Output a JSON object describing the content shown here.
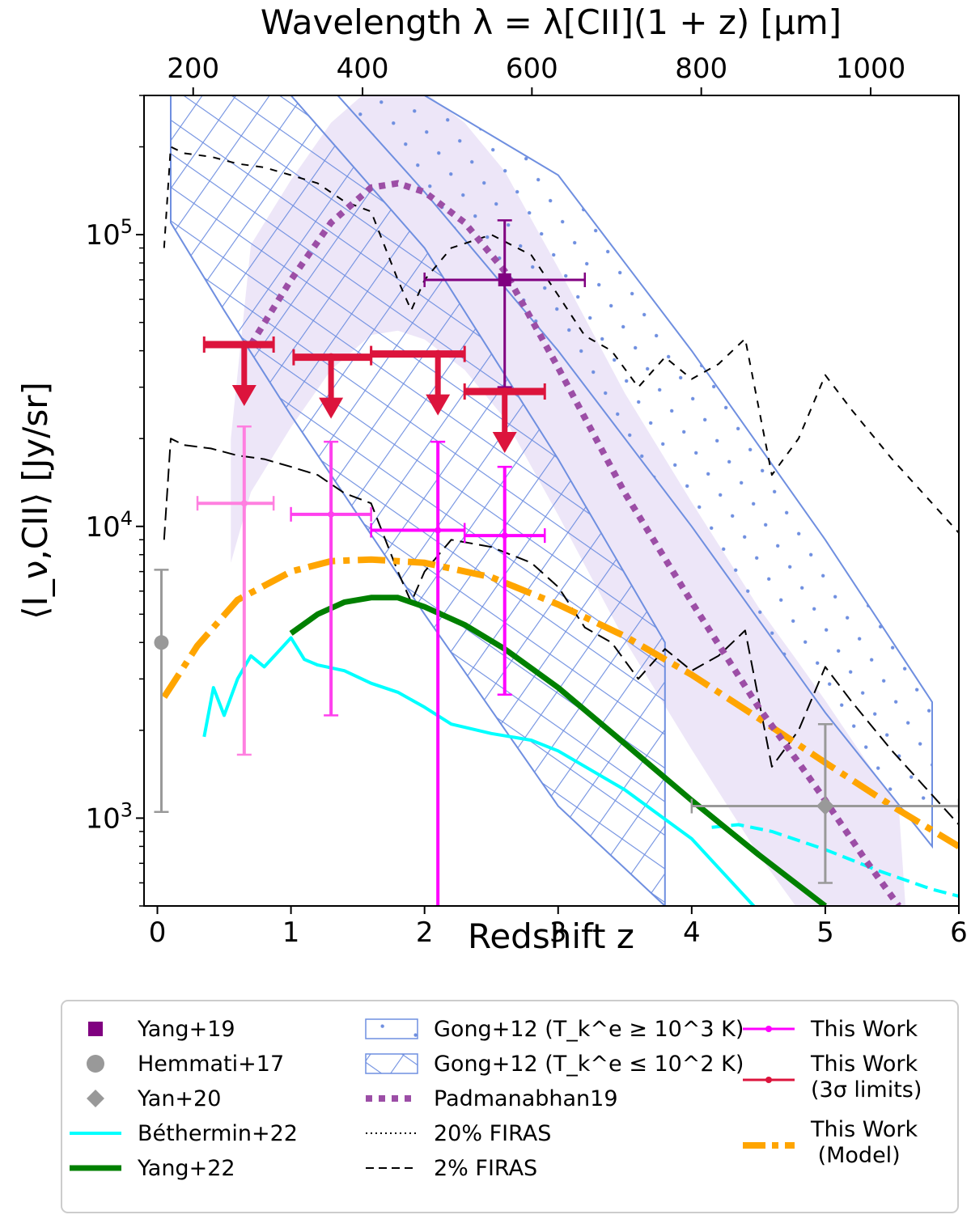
{
  "chart_data": {
    "type": "line",
    "title": "",
    "xlabel": "Redshift z",
    "ylabel": "⟨I_ν,CII⟩ [Jy/sr]",
    "top_xlabel": "Wavelength λ = λ[CII](1 + z) [μm]",
    "xlim": [
      -0.1,
      6.0
    ],
    "ylim": [
      500,
      300000
    ],
    "yscale": "log",
    "x_ticks": [
      "0",
      "1",
      "2",
      "3",
      "4",
      "5",
      "6"
    ],
    "y_ticks": [
      "10^3",
      "10^4",
      "10^5"
    ],
    "top_ticks": [
      "200",
      "400",
      "600",
      "800",
      "1000"
    ],
    "legend_position": "below",
    "series": [
      {
        "name": "Yang+19",
        "kind": "point",
        "color": "#800080",
        "points": [
          {
            "x": 2.6,
            "y": 70000,
            "xerr": [
              2.0,
              3.2
            ],
            "yerr": [
              30000,
              112000
            ]
          }
        ]
      },
      {
        "name": "Hemmati+17",
        "kind": "point",
        "color": "#808080",
        "points": [
          {
            "x": 0.03,
            "y": 4000,
            "yerr": [
              1050,
              7100
            ]
          }
        ]
      },
      {
        "name": "Yan+20",
        "kind": "point",
        "color": "#808080",
        "points": [
          {
            "x": 5.0,
            "y": 1100,
            "xerr": [
              4.0,
              6.0
            ],
            "yerr": [
              600,
              2100
            ]
          }
        ]
      },
      {
        "name": "Béthermin+22",
        "kind": "line",
        "color": "#00ffff",
        "x": [
          0.35,
          0.42,
          0.5,
          0.6,
          0.7,
          0.8,
          0.9,
          1.0,
          1.1,
          1.2,
          1.4,
          1.6,
          1.8,
          2.0,
          2.2,
          2.5,
          2.8,
          3.0,
          3.5,
          4.0,
          4.5
        ],
        "y": [
          1900,
          2800,
          2250,
          3000,
          3600,
          3300,
          3700,
          4150,
          3500,
          3350,
          3200,
          2900,
          2700,
          2400,
          2100,
          1950,
          1850,
          1700,
          1250,
          850,
          480
        ]
      },
      {
        "name": "Béthermin+22 (extension)",
        "kind": "line",
        "color": "#00ffff",
        "style": "dashed",
        "x": [
          4.15,
          4.35,
          4.6,
          5.0,
          5.4,
          5.8,
          6.0
        ],
        "y": [
          930,
          950,
          900,
          780,
          660,
          570,
          540
        ]
      },
      {
        "name": "Yang+22",
        "kind": "line",
        "color": "#008000",
        "x": [
          1.0,
          1.2,
          1.4,
          1.6,
          1.8,
          2.0,
          2.3,
          2.6,
          3.0,
          3.5,
          4.0,
          4.5,
          5.0
        ],
        "y": [
          4300,
          5000,
          5500,
          5700,
          5700,
          5300,
          4600,
          3800,
          2800,
          1800,
          1150,
          750,
          500
        ]
      },
      {
        "name": "Padmanabhan19",
        "kind": "line",
        "color": "#9c4ea6",
        "x": [
          0.7,
          1.0,
          1.3,
          1.6,
          1.8,
          2.0,
          2.3,
          2.6,
          3.0,
          3.5,
          4.0,
          4.5,
          4.8,
          5.0,
          5.3,
          5.55
        ],
        "y": [
          42000,
          70000,
          110000,
          145000,
          150000,
          140000,
          110000,
          75000,
          35000,
          13000,
          5500,
          2400,
          1550,
          1150,
          720,
          500
        ]
      },
      {
        "name": "20% FIRAS",
        "kind": "line",
        "color": "#000000",
        "style": "dotted",
        "x": [
          0.05,
          0.1,
          0.2,
          0.4,
          0.6,
          0.8,
          1.0,
          1.2,
          1.4,
          1.6,
          1.8,
          1.9,
          2.0,
          2.2,
          2.5,
          2.8,
          3.0,
          3.2,
          3.4,
          3.6,
          3.8,
          4.0,
          4.2,
          4.4,
          4.6,
          4.8,
          5.0,
          5.2,
          5.5,
          5.8,
          6.0
        ],
        "y": [
          90000,
          200000,
          190000,
          185000,
          175000,
          170000,
          160000,
          150000,
          130000,
          120000,
          70000,
          55000,
          70000,
          90000,
          100000,
          85000,
          62000,
          45000,
          40000,
          30000,
          38000,
          32000,
          36000,
          44000,
          15000,
          20000,
          33000,
          25000,
          17000,
          12000,
          9500
        ]
      },
      {
        "name": "2% FIRAS",
        "kind": "line",
        "color": "#000000",
        "style": "dashed",
        "x": [
          0.05,
          0.1,
          0.2,
          0.4,
          0.6,
          0.8,
          1.0,
          1.2,
          1.4,
          1.6,
          1.8,
          1.9,
          2.0,
          2.2,
          2.5,
          2.8,
          3.0,
          3.2,
          3.4,
          3.6,
          3.8,
          4.0,
          4.2,
          4.4,
          4.6,
          4.8,
          5.0,
          5.2,
          5.5,
          5.8,
          6.0
        ],
        "y": [
          9000,
          20000,
          19000,
          18500,
          17500,
          17000,
          16000,
          15000,
          13000,
          12000,
          7000,
          5500,
          7000,
          9000,
          8500,
          7500,
          6200,
          4500,
          4000,
          3000,
          3800,
          3200,
          3600,
          4400,
          1500,
          2000,
          3300,
          2500,
          1700,
          1200,
          950
        ]
      },
      {
        "name": "This Work",
        "kind": "point",
        "color": "#ff00ff",
        "points": [
          {
            "x": 0.65,
            "y": 12000,
            "xerr": [
              0.3,
              0.87
            ],
            "yerr": [
              1650,
              22000
            ],
            "color": "#ff80e0"
          },
          {
            "x": 1.3,
            "y": 11000,
            "xerr": [
              1.0,
              1.6
            ],
            "yerr": [
              2250,
              19500
            ],
            "color": "#ff40ee"
          },
          {
            "x": 2.1,
            "y": 9700,
            "xerr": [
              1.6,
              2.3
            ],
            "yerr": [
              450,
              19500
            ],
            "color": "#ff00ff"
          },
          {
            "x": 2.6,
            "y": 9300,
            "xerr": [
              2.3,
              2.9
            ],
            "yerr": [
              2650,
              16000
            ],
            "color": "#ff00ff"
          }
        ]
      },
      {
        "name": "This Work (3σ limits)",
        "kind": "upper-limit",
        "color": "#dc143c",
        "points": [
          {
            "x": 0.65,
            "y": 42000,
            "xerr": [
              0.35,
              0.87
            ]
          },
          {
            "x": 1.3,
            "y": 38000,
            "xerr": [
              1.02,
              1.6
            ]
          },
          {
            "x": 2.1,
            "y": 39000,
            "xerr": [
              1.6,
              2.3
            ]
          },
          {
            "x": 2.6,
            "y": 29000,
            "xerr": [
              2.3,
              2.9
            ]
          }
        ]
      },
      {
        "name": "This Work (Model)",
        "kind": "line",
        "color": "#ffa500",
        "style": "dashdot",
        "x": [
          0.05,
          0.3,
          0.6,
          1.0,
          1.3,
          1.6,
          2.0,
          2.5,
          3.0,
          3.5,
          4.0,
          4.5,
          5.0,
          5.5,
          6.0
        ],
        "y": [
          2600,
          3900,
          5600,
          7000,
          7600,
          7700,
          7500,
          6700,
          5400,
          4200,
          3100,
          2200,
          1550,
          1100,
          800
        ]
      },
      {
        "name": "Gong+12 (T_k^e ≥ 10^3 K)",
        "kind": "band",
        "color": "#6f8fe0",
        "x": [
          1.35,
          2.0,
          3.0,
          4.0,
          5.0,
          5.8
        ],
        "y_low": [
          300000,
          140000,
          40000,
          10000,
          2300,
          800
        ],
        "y_high": [
          300000,
          300000,
          160000,
          40000,
          9000,
          2500
        ]
      },
      {
        "name": "Gong+12 (T_k^e ≤ 10^2 K)",
        "kind": "band",
        "color": "#6f8fe0",
        "x": [
          0.1,
          0.5,
          1.0,
          2.0,
          3.0,
          3.8
        ],
        "y_low": [
          110000,
          55000,
          24000,
          5000,
          1100,
          500
        ],
        "y_high": [
          300000,
          300000,
          300000,
          90000,
          17000,
          4000
        ]
      }
    ],
    "legend": [
      {
        "label": "Yang+19",
        "marker": "square",
        "color": "#800080"
      },
      {
        "label": "Hemmati+17",
        "marker": "circle",
        "color": "#999999"
      },
      {
        "label": "Yan+20",
        "marker": "diamond",
        "color": "#999999"
      },
      {
        "label": "Béthermin+22",
        "marker": "line",
        "color": "#00ffff"
      },
      {
        "label": "Yang+22",
        "marker": "line",
        "color": "#008000"
      },
      {
        "label": "Gong+12 (T_k^e ≥ 10^3 K)",
        "marker": "hatch-dot",
        "color": "#6f8fe0"
      },
      {
        "label": "Gong+12 (T_k^e ≤ 10^2 K)",
        "marker": "hatch-cross",
        "color": "#6f8fe0"
      },
      {
        "label": "Padmanabhan19",
        "marker": "dotted",
        "color": "#9c4ea6"
      },
      {
        "label": "20% FIRAS",
        "marker": "fine-dotted",
        "color": "#000000"
      },
      {
        "label": "2% FIRAS",
        "marker": "dashed",
        "color": "#000000"
      },
      {
        "label": "This Work",
        "marker": "line-point",
        "color": "#ff00ff"
      },
      {
        "label": "This Work\n(3σ limits)",
        "marker": "line-point",
        "color": "#dc143c"
      },
      {
        "label": "This Work\n (Model)",
        "marker": "dashdot",
        "color": "#ffa500"
      }
    ],
    "purple_shade_color": "#e6dcf5"
  }
}
